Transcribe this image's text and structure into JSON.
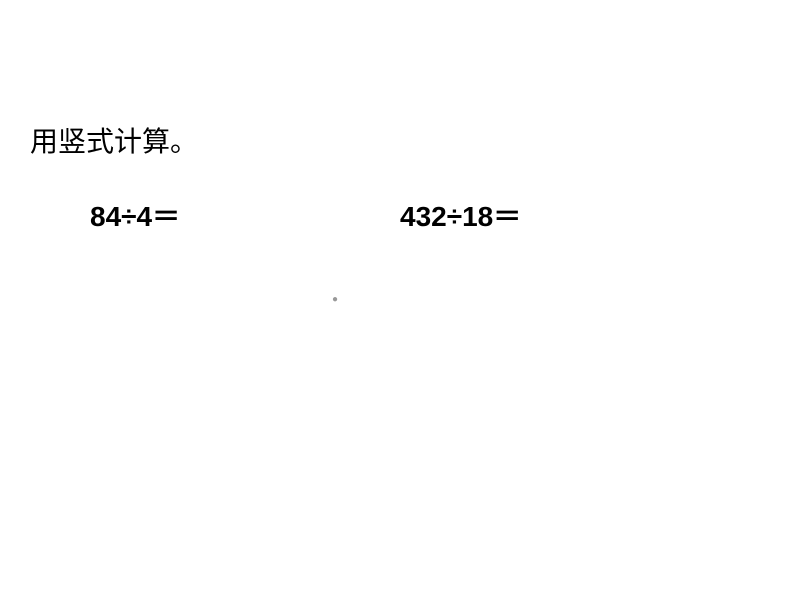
{
  "instruction": "用竖式计算。",
  "problems": {
    "problem1": "84÷4＝",
    "problem2": "432÷18＝"
  },
  "styles": {
    "background_color": "#ffffff",
    "text_color": "#000000",
    "instruction_fontsize": 28,
    "problem_fontsize": 28,
    "problem_fontweight": "bold"
  }
}
